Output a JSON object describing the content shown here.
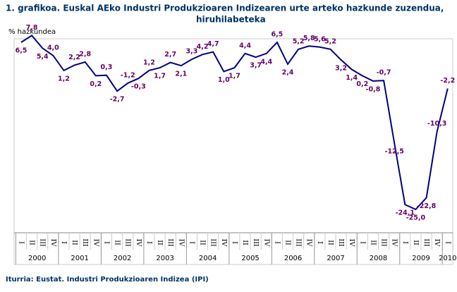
{
  "chart_data": {
    "type": "line",
    "title": "1. grafikoa. Euskal AEko Industri Produkzioaren Indizearen urte arteko hazkunde zuzendua, hiruhilabeteka",
    "y_label": "% hazkundea",
    "source": "Iturria: Eustat. Industri Produkzioaren Indizea (IPI)",
    "categories": [
      "I",
      "II",
      "III",
      "IV",
      "I",
      "II",
      "III",
      "IV",
      "I",
      "II",
      "III",
      "IV",
      "I",
      "II",
      "III",
      "IV",
      "I",
      "II",
      "III",
      "IV",
      "I",
      "II",
      "III",
      "IV",
      "I",
      "II",
      "III",
      "IV",
      "I",
      "II",
      "III",
      "IV",
      "I",
      "II",
      "III",
      "IV",
      "I",
      "II",
      "III",
      "IV",
      "I"
    ],
    "groups": [
      "2000",
      "2001",
      "2002",
      "2003",
      "2004",
      "2005",
      "2006",
      "2007",
      "2008",
      "2009",
      "2010"
    ],
    "values": [
      6.5,
      7.8,
      5.4,
      4.0,
      1.2,
      2.2,
      2.8,
      0.2,
      0.3,
      -2.7,
      -1.2,
      -0.3,
      1.2,
      1.7,
      2.7,
      2.1,
      3.3,
      4.2,
      4.7,
      1.0,
      1.7,
      4.4,
      3.7,
      4.4,
      6.5,
      2.4,
      5.2,
      5.8,
      5.6,
      5.2,
      3.2,
      1.4,
      0.2,
      -0.8,
      -0.7,
      -12.5,
      -24.1,
      -25.0,
      -22.8,
      -10.3,
      -2.2
    ],
    "value_labels": [
      "6,5",
      "7,8",
      "5,4",
      "4,0",
      "1,2",
      "2,2",
      "2,8",
      "0,2",
      "0,3",
      "-2,7",
      "-1,2",
      "-0,3",
      "1,2",
      "1,7",
      "2,7",
      "2,1",
      "3,3",
      "4,2",
      "4,7",
      "1,0",
      "1,7",
      "4,4",
      "3,7",
      "4,4",
      "6,5",
      "2,4",
      "5,2",
      "5,8",
      "5,6",
      "5,2",
      "3,2",
      "1,4",
      "0,2",
      "-0,8",
      "-0,7",
      "-12,5",
      "-24,1",
      "-25,0",
      "-22,8",
      "-10,3",
      "-2,2"
    ],
    "color": "#000080",
    "label_color": "#660066",
    "ylim": [
      -29.4,
      8.5
    ]
  }
}
